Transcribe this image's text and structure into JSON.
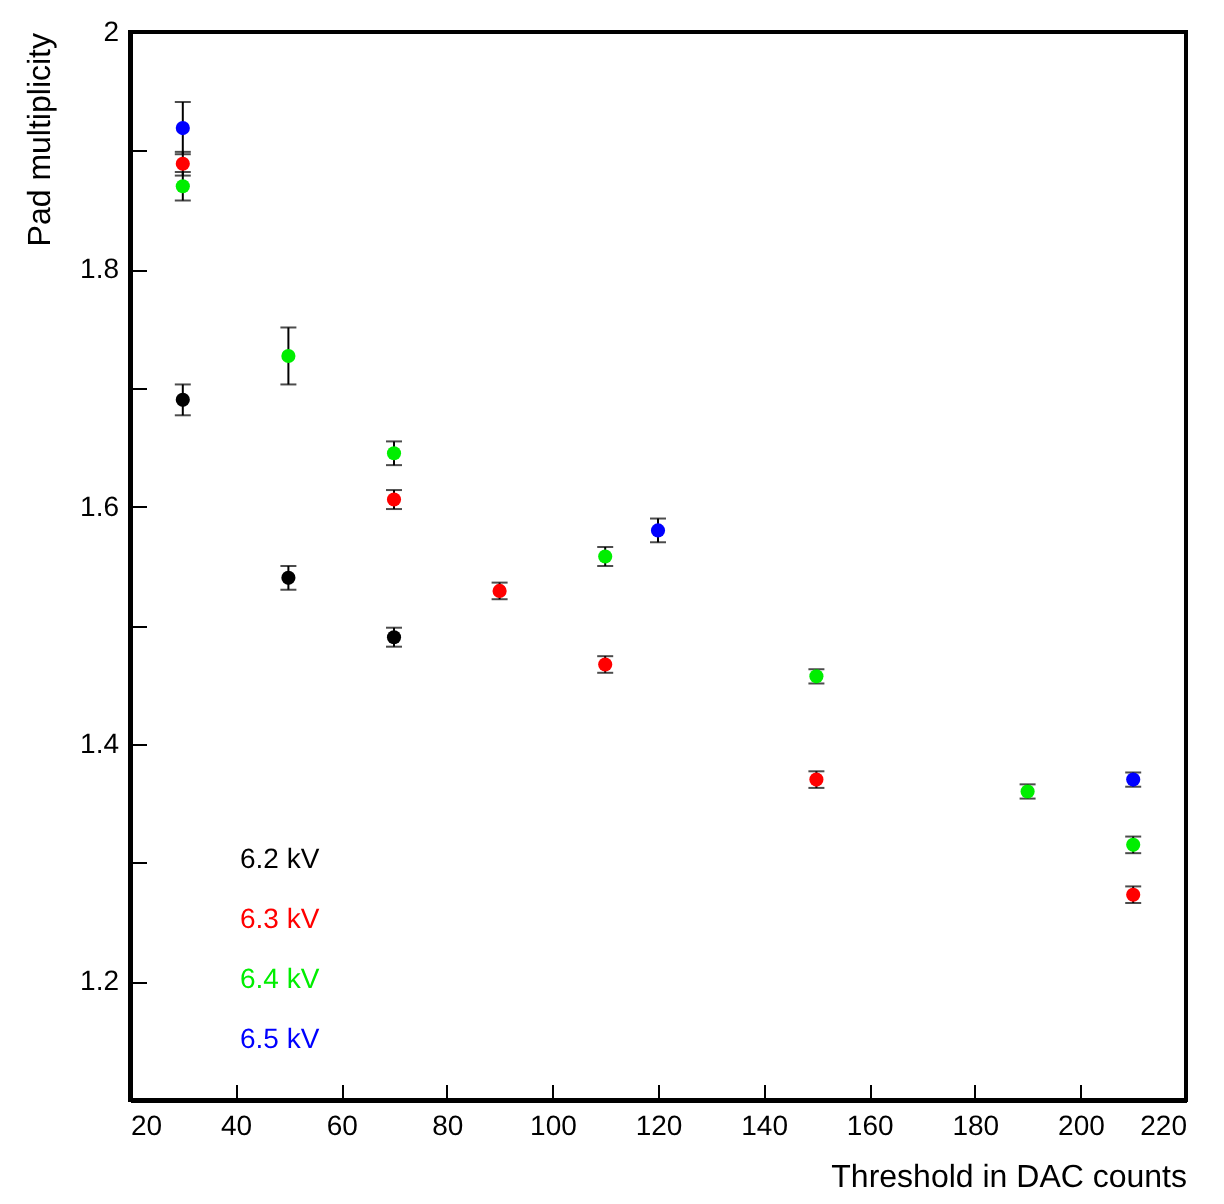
{
  "chart_data": {
    "type": "scatter",
    "xlabel": "Threshold in DAC counts",
    "ylabel": "Pad multiplicity",
    "xlim": [
      20,
      220
    ],
    "xticks": [
      20,
      40,
      60,
      80,
      100,
      120,
      140,
      160,
      180,
      200,
      220
    ],
    "ylim": [
      1.1,
      2.0
    ],
    "yticks": [
      {
        "value": 1.1,
        "label": null
      },
      1.2,
      {
        "value": 1.3,
        "label": null
      },
      1.4,
      {
        "value": 1.5,
        "label": null
      },
      1.6,
      {
        "value": 1.7,
        "label": null
      },
      1.8,
      {
        "value": 1.9,
        "label": null
      },
      2
    ],
    "grid": false,
    "legend": "bottom left",
    "marker": "circle",
    "series": [
      {
        "name": "6.2 kV",
        "color": "#000000",
        "x": [
          30,
          50,
          70
        ],
        "values": [
          1.69,
          1.54,
          1.49
        ],
        "errors": [
          0.013,
          0.01,
          0.008
        ]
      },
      {
        "name": "6.3 kV",
        "color": "#ff0000",
        "x": [
          30,
          70,
          90,
          110,
          150,
          210
        ],
        "values": [
          1.889,
          1.606,
          1.529,
          1.467,
          1.37,
          1.273
        ],
        "errors": [
          0.01,
          0.008,
          0.007,
          0.007,
          0.007,
          0.007
        ]
      },
      {
        "name": "6.4 kV",
        "color": "#00ee00",
        "x": [
          30,
          50,
          70,
          110,
          150,
          190,
          210
        ],
        "values": [
          1.87,
          1.727,
          1.645,
          1.558,
          1.457,
          1.36,
          1.315
        ],
        "errors": [
          0.012,
          0.024,
          0.01,
          0.008,
          0.006,
          0.006,
          0.007
        ]
      },
      {
        "name": "6.5 kV",
        "color": "#0000ff",
        "x": [
          30,
          120,
          210
        ],
        "values": [
          1.919,
          1.58,
          1.37
        ],
        "errors": [
          0.022,
          0.01,
          0.006
        ]
      }
    ]
  }
}
